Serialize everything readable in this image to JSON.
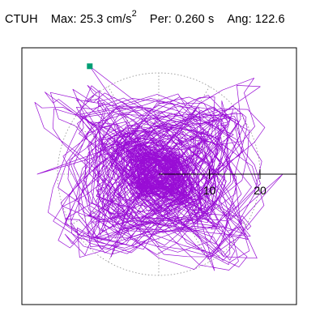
{
  "header": {
    "station": "CTUH",
    "max_label": "Max:",
    "max_value": "25.3",
    "max_unit": "cm/s",
    "max_unit_exp": "2",
    "period_label": "Per:",
    "period_value": "0.260",
    "period_unit": "s",
    "angle_label": "Ang:",
    "angle_value": "122.6"
  },
  "chart_data": {
    "type": "scatter",
    "title": "CTUH  Max: 25.3 cm/s2  Per: 0.260 s  Ang: 122.6",
    "units": "cm/s2",
    "ring_labels": [
      "10",
      "20"
    ],
    "ring_values": [
      10,
      20
    ],
    "axis_range": [
      -27,
      27
    ],
    "polar_grid": true,
    "grid_rings_values": [
      10,
      20
    ],
    "grid_spoke_angles_deg": [
      0,
      30,
      60,
      90,
      120,
      150,
      180,
      210,
      240,
      270,
      300,
      330
    ],
    "peak_marker": {
      "angle_deg": 122.6,
      "magnitude": 25.3
    },
    "colors": {
      "trace": "#9400d3",
      "marker": "#009e73",
      "grid": "#8c8c8c"
    },
    "trace_long_axis": [
      {
        "angle_deg": 122.6,
        "magnitude": 25.3
      },
      {
        "angle_deg": 180.0,
        "magnitude": 24.0
      },
      {
        "angle_deg": 0.0,
        "magnitude": 24.5
      },
      {
        "angle_deg": 300.0,
        "magnitude": 22.0
      },
      {
        "angle_deg": 60.0,
        "magnitude": 15.0
      },
      {
        "angle_deg": 240.0,
        "magnitude": 19.0
      }
    ]
  }
}
